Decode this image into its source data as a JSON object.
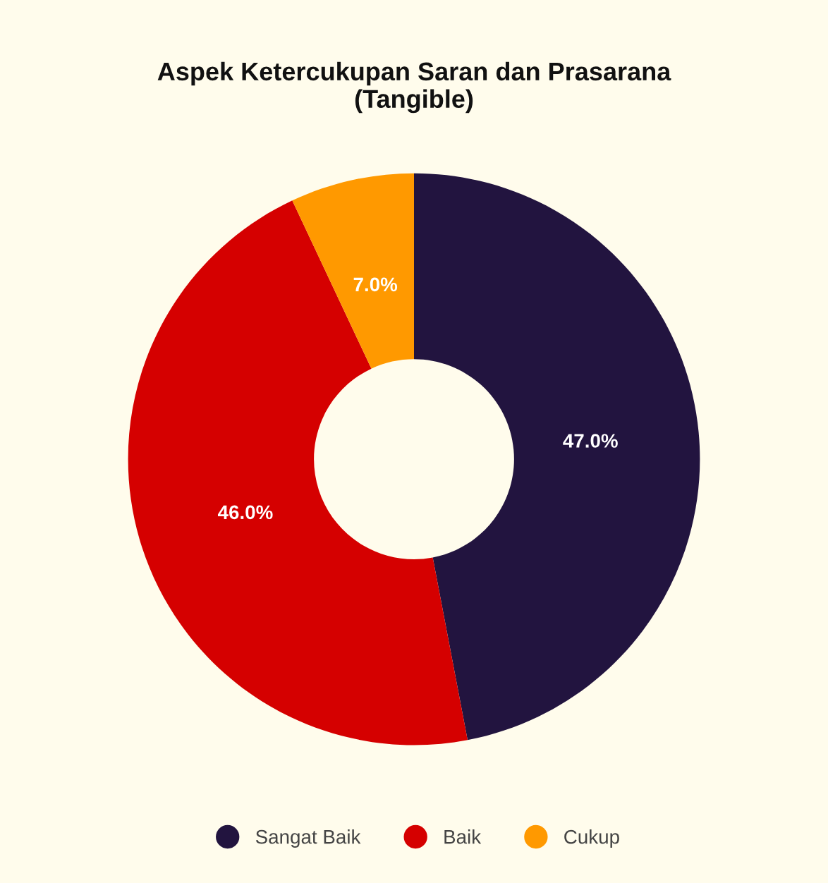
{
  "chart_data": {
    "type": "donut",
    "title": "Aspek Ketercukupan Saran dan Prasarana\n(Tangible)",
    "categories": [
      "Sangat Baik",
      "Baik",
      "Cukup"
    ],
    "values": [
      47.0,
      46.0,
      7.0
    ],
    "colors": [
      "#22143f",
      "#d50000",
      "#ff9900"
    ],
    "value_labels": [
      "47.0%",
      "46.0%",
      "7.0%"
    ],
    "legend": "bottom"
  }
}
